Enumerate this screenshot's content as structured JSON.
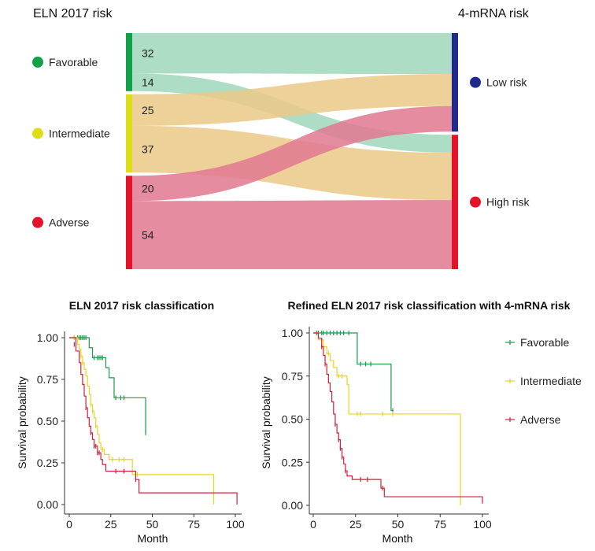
{
  "colors": {
    "favorable": "#12a04a",
    "intermediate": "#dede17",
    "adverse": "#e5132a",
    "low_risk": "#1f2a8c",
    "high_risk": "#e5132a",
    "flow_green": "#9fd7bb",
    "flow_orange": "#ebc987",
    "flow_pink": "#e17891",
    "km_favorable": "#1a9a4a",
    "km_intermediate": "#e6d61f",
    "km_adverse": "#d21f3c"
  },
  "chart_data": [
    {
      "type": "sankey",
      "left_title": "ELN 2017 risk",
      "right_title": "4-mRNA risk",
      "left_nodes": [
        {
          "key": "favorable",
          "label": "Favorable",
          "total": 46
        },
        {
          "key": "intermediate",
          "label": "Intermediate",
          "total": 62
        },
        {
          "key": "adverse",
          "label": "Adverse",
          "total": 74
        }
      ],
      "right_nodes": [
        {
          "key": "low",
          "label": "Low risk",
          "total": 77
        },
        {
          "key": "high",
          "label": "High risk",
          "total": 105
        }
      ],
      "flows": [
        {
          "from": "favorable",
          "to": "low",
          "value": 32,
          "label": "32"
        },
        {
          "from": "favorable",
          "to": "high",
          "value": 14,
          "label": "14"
        },
        {
          "from": "intermediate",
          "to": "low",
          "value": 25,
          "label": "25"
        },
        {
          "from": "intermediate",
          "to": "high",
          "value": 37,
          "label": "37"
        },
        {
          "from": "adverse",
          "to": "low",
          "value": 20,
          "label": "20"
        },
        {
          "from": "adverse",
          "to": "high",
          "value": 54,
          "label": "54"
        }
      ]
    },
    {
      "type": "line",
      "title": "ELN 2017 risk classification",
      "xlabel": "Month",
      "ylabel": "Survival probability",
      "xlim": [
        0,
        100
      ],
      "ylim": [
        0,
        1
      ],
      "x_ticks": [
        "0",
        "25",
        "50",
        "75",
        "100"
      ],
      "y_ticks": [
        "0.00",
        "0.25",
        "0.50",
        "0.75",
        "1.00"
      ],
      "series": [
        {
          "key": "km_favorable",
          "steps": [
            [
              0,
              1.0
            ],
            [
              10,
              1.0
            ],
            [
              12,
              0.94
            ],
            [
              14,
              0.88
            ],
            [
              21,
              0.88
            ],
            [
              22,
              0.82
            ],
            [
              24,
              0.76
            ],
            [
              27,
              0.64
            ],
            [
              35,
              0.64
            ],
            [
              37,
              0.64
            ],
            [
              44,
              0.64
            ],
            [
              46,
              0.43
            ]
          ],
          "censor": [
            [
              3,
              1.0
            ],
            [
              5,
              1.0
            ],
            [
              6,
              1.0
            ],
            [
              7,
              1.0
            ],
            [
              8,
              1.0
            ],
            [
              9,
              1.0
            ],
            [
              10,
              1.0
            ],
            [
              15,
              0.88
            ],
            [
              17,
              0.88
            ],
            [
              18,
              0.88
            ],
            [
              19,
              0.88
            ],
            [
              20,
              0.88
            ],
            [
              28,
              0.64
            ],
            [
              31,
              0.64
            ],
            [
              33,
              0.64
            ],
            [
              46,
              0.43
            ]
          ]
        },
        {
          "key": "km_intermediate",
          "steps": [
            [
              0,
              1.0
            ],
            [
              5,
              0.96
            ],
            [
              6,
              0.93
            ],
            [
              7,
              0.89
            ],
            [
              8,
              0.85
            ],
            [
              9,
              0.81
            ],
            [
              10,
              0.77
            ],
            [
              11,
              0.71
            ],
            [
              12,
              0.66
            ],
            [
              13,
              0.6
            ],
            [
              14,
              0.56
            ],
            [
              15,
              0.52
            ],
            [
              16,
              0.47
            ],
            [
              17,
              0.42
            ],
            [
              18,
              0.37
            ],
            [
              19,
              0.33
            ],
            [
              21,
              0.3
            ],
            [
              24,
              0.27
            ],
            [
              34,
              0.27
            ],
            [
              38,
              0.18
            ],
            [
              87,
              0.18
            ],
            [
              87,
              0.0
            ]
          ],
          "censor": [
            [
              3,
              1.0
            ],
            [
              7,
              0.89
            ],
            [
              8,
              0.85
            ],
            [
              13,
              0.6
            ],
            [
              14,
              0.56
            ],
            [
              16,
              0.47
            ],
            [
              20,
              0.33
            ],
            [
              26,
              0.27
            ],
            [
              30,
              0.27
            ],
            [
              33,
              0.27
            ],
            [
              41,
              0.18
            ]
          ]
        },
        {
          "key": "km_adverse",
          "steps": [
            [
              0,
              1.0
            ],
            [
              4,
              0.92
            ],
            [
              6,
              0.85
            ],
            [
              7,
              0.78
            ],
            [
              8,
              0.72
            ],
            [
              9,
              0.65
            ],
            [
              10,
              0.58
            ],
            [
              11,
              0.52
            ],
            [
              12,
              0.47
            ],
            [
              13,
              0.43
            ],
            [
              14,
              0.39
            ],
            [
              15,
              0.35
            ],
            [
              17,
              0.31
            ],
            [
              19,
              0.27
            ],
            [
              20,
              0.24
            ],
            [
              22,
              0.2
            ],
            [
              30,
              0.2
            ],
            [
              38,
              0.2
            ],
            [
              40,
              0.15
            ],
            [
              42,
              0.07
            ],
            [
              101,
              0.07
            ],
            [
              101,
              0.0
            ]
          ],
          "censor": [
            [
              3,
              0.96
            ],
            [
              10,
              0.58
            ],
            [
              13,
              0.43
            ],
            [
              15,
              0.35
            ],
            [
              16,
              0.35
            ],
            [
              17,
              0.31
            ],
            [
              18,
              0.31
            ],
            [
              28,
              0.2
            ],
            [
              33,
              0.2
            ],
            [
              40,
              0.15
            ]
          ]
        }
      ]
    },
    {
      "type": "line",
      "title": "Refined ELN 2017 risk classification with 4-mRNA risk",
      "xlabel": "Month",
      "ylabel": "Survival probability",
      "xlim": [
        0,
        100
      ],
      "ylim": [
        0,
        1
      ],
      "x_ticks": [
        "0",
        "25",
        "50",
        "75",
        "100"
      ],
      "y_ticks": [
        "0.00",
        "0.25",
        "0.50",
        "0.75",
        "1.00"
      ],
      "legend_position": "right",
      "legend": [
        {
          "key": "km_favorable",
          "label": "Favorable"
        },
        {
          "key": "km_intermediate",
          "label": "Intermediate"
        },
        {
          "key": "km_adverse",
          "label": "Adverse"
        }
      ],
      "series": [
        {
          "key": "km_favorable",
          "steps": [
            [
              0,
              1.0
            ],
            [
              26,
              1.0
            ],
            [
              26,
              0.82
            ],
            [
              46,
              0.82
            ],
            [
              46,
              0.55
            ],
            [
              47,
              0.55
            ]
          ],
          "censor": [
            [
              2,
              1.0
            ],
            [
              3,
              1.0
            ],
            [
              5,
              1.0
            ],
            [
              6,
              1.0
            ],
            [
              8,
              1.0
            ],
            [
              10,
              1.0
            ],
            [
              12,
              1.0
            ],
            [
              14,
              1.0
            ],
            [
              16,
              1.0
            ],
            [
              18,
              1.0
            ],
            [
              21,
              1.0
            ],
            [
              28,
              0.82
            ],
            [
              31,
              0.82
            ],
            [
              34,
              0.82
            ],
            [
              47,
              0.55
            ]
          ]
        },
        {
          "key": "km_intermediate",
          "steps": [
            [
              0,
              1.0
            ],
            [
              3,
              0.96
            ],
            [
              6,
              0.92
            ],
            [
              8,
              0.88
            ],
            [
              10,
              0.84
            ],
            [
              12,
              0.8
            ],
            [
              14,
              0.75
            ],
            [
              19,
              0.75
            ],
            [
              20,
              0.7
            ],
            [
              21,
              0.53
            ],
            [
              87,
              0.53
            ],
            [
              87,
              0.0
            ]
          ],
          "censor": [
            [
              5,
              0.92
            ],
            [
              9,
              0.88
            ],
            [
              15,
              0.75
            ],
            [
              17,
              0.75
            ],
            [
              26,
              0.53
            ],
            [
              28,
              0.53
            ],
            [
              41,
              0.53
            ],
            [
              47,
              0.53
            ]
          ]
        },
        {
          "key": "km_adverse",
          "steps": [
            [
              0,
              1.0
            ],
            [
              3,
              0.97
            ],
            [
              5,
              0.92
            ],
            [
              6,
              0.87
            ],
            [
              7,
              0.82
            ],
            [
              8,
              0.76
            ],
            [
              9,
              0.71
            ],
            [
              10,
              0.66
            ],
            [
              11,
              0.6
            ],
            [
              12,
              0.53
            ],
            [
              13,
              0.47
            ],
            [
              14,
              0.42
            ],
            [
              15,
              0.38
            ],
            [
              16,
              0.33
            ],
            [
              17,
              0.28
            ],
            [
              18,
              0.24
            ],
            [
              19,
              0.2
            ],
            [
              20,
              0.17
            ],
            [
              23,
              0.15
            ],
            [
              38,
              0.15
            ],
            [
              40,
              0.1
            ],
            [
              42,
              0.05
            ],
            [
              100,
              0.05
            ],
            [
              100,
              0.01
            ]
          ],
          "censor": [
            [
              5,
              0.92
            ],
            [
              7,
              0.82
            ],
            [
              13,
              0.47
            ],
            [
              15,
              0.38
            ],
            [
              16,
              0.33
            ],
            [
              17,
              0.28
            ],
            [
              19,
              0.2
            ],
            [
              28,
              0.15
            ],
            [
              32,
              0.15
            ],
            [
              41,
              0.1
            ]
          ]
        }
      ]
    }
  ]
}
